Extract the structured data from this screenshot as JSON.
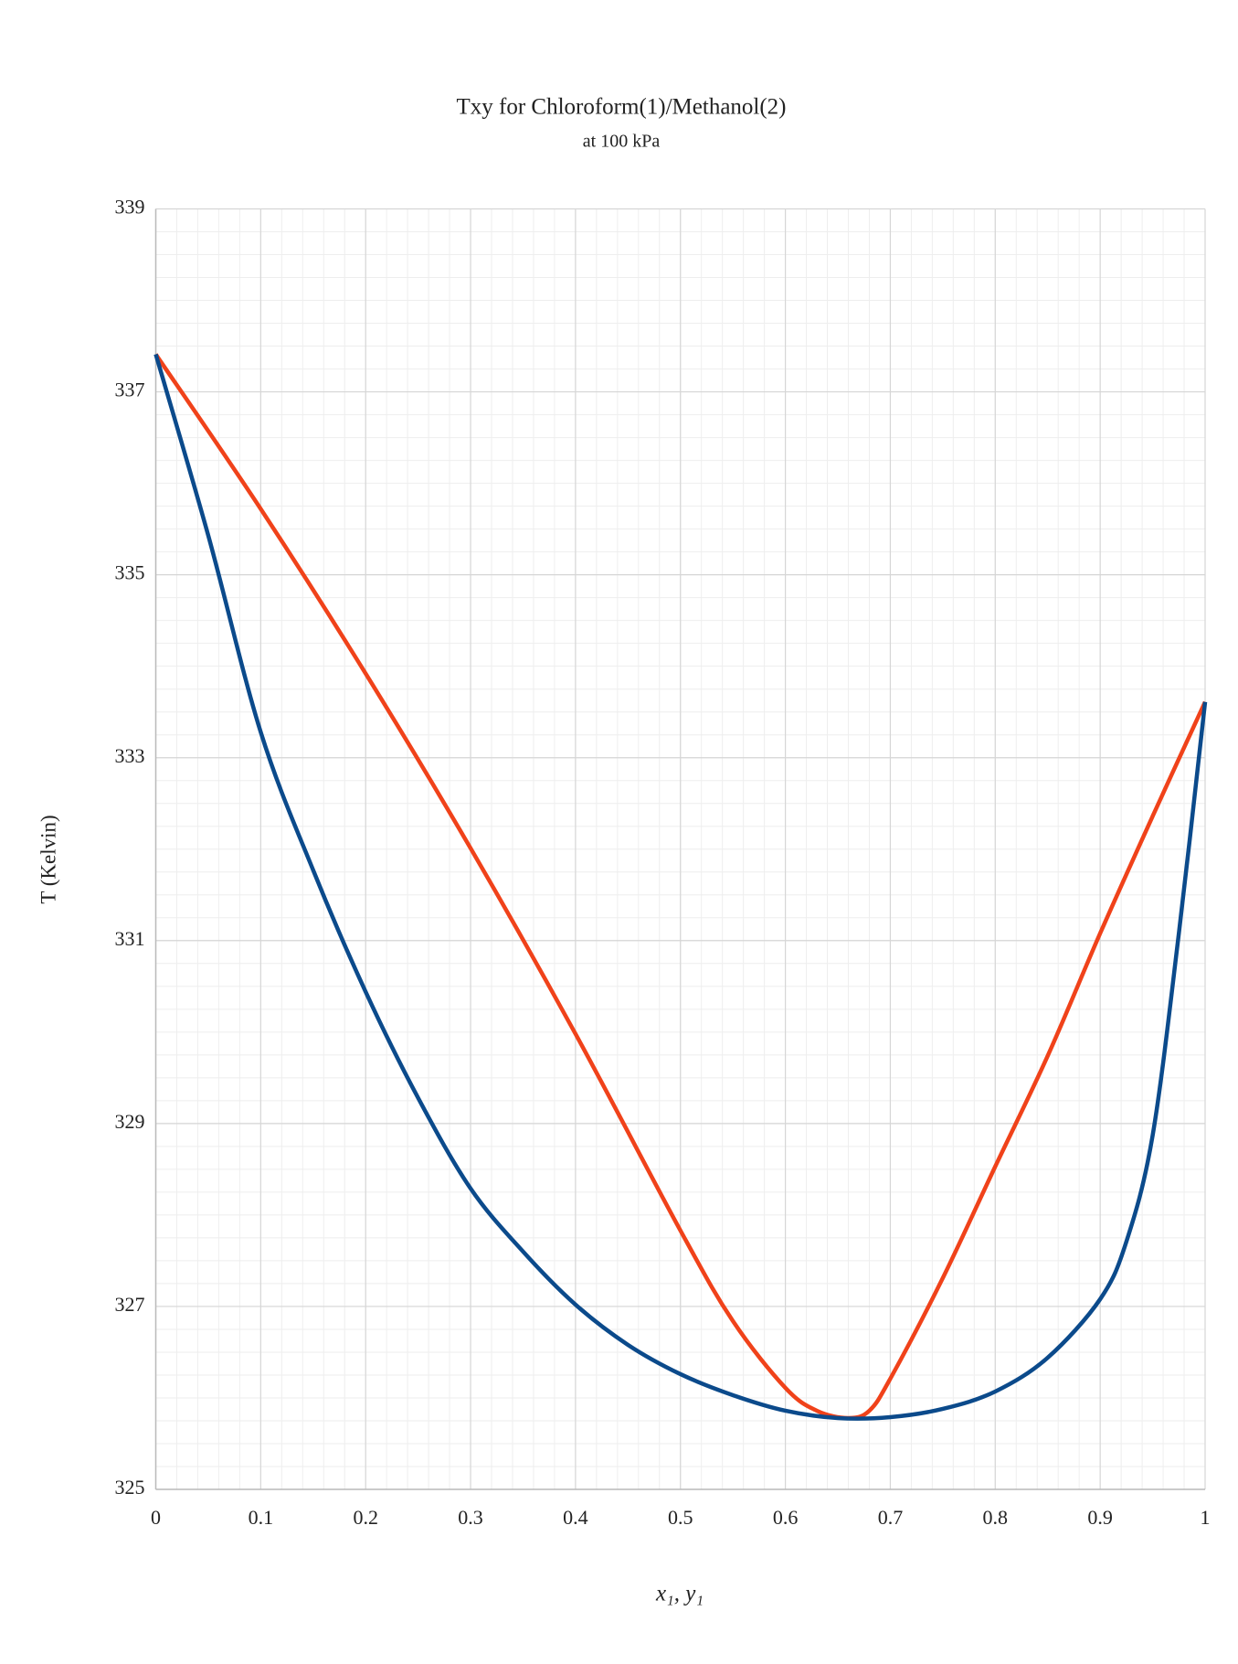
{
  "chart_data": {
    "type": "line",
    "title": "Txy for Chloroform(1)/Methanol(2)",
    "subtitle": "at 100 kPa",
    "x_label": "x₁, y₁",
    "y_label": "T (Kelvin)",
    "xlim": [
      0,
      1
    ],
    "ylim": [
      325,
      339
    ],
    "xticks": [
      0,
      0.1,
      0.2,
      0.3,
      0.4,
      0.5,
      0.6,
      0.7,
      0.8,
      0.9,
      1
    ],
    "yticks": [
      325,
      327,
      329,
      331,
      333,
      335,
      337,
      339
    ],
    "grid": true,
    "series": [
      {
        "color": "#0b4a8b",
        "x": [
          0,
          0.05,
          0.1,
          0.15,
          0.2,
          0.25,
          0.3,
          0.35,
          0.4,
          0.45,
          0.5,
          0.55,
          0.6,
          0.65,
          0.7,
          0.75,
          0.8,
          0.85,
          0.9,
          0.925,
          0.95,
          0.975,
          1
        ],
        "values": [
          337.41,
          335.43,
          333.28,
          331.77,
          330.44,
          329.28,
          328.29,
          327.6,
          327.02,
          326.58,
          326.26,
          326.03,
          325.86,
          325.78,
          325.79,
          325.88,
          326.07,
          326.44,
          327.08,
          327.71,
          328.87,
          331.08,
          333.61
        ]
      },
      {
        "color": "#f0421a",
        "x": [
          0,
          0.1,
          0.2,
          0.3,
          0.4,
          0.5,
          0.55,
          0.6,
          0.63,
          0.66,
          0.68,
          0.7,
          0.75,
          0.8,
          0.85,
          0.9,
          0.95,
          1
        ],
        "values": [
          337.41,
          335.72,
          333.92,
          332.01,
          329.98,
          327.83,
          326.84,
          326.11,
          325.86,
          325.78,
          325.86,
          326.21,
          327.31,
          328.53,
          329.74,
          331.08,
          332.36,
          333.61
        ]
      }
    ]
  }
}
